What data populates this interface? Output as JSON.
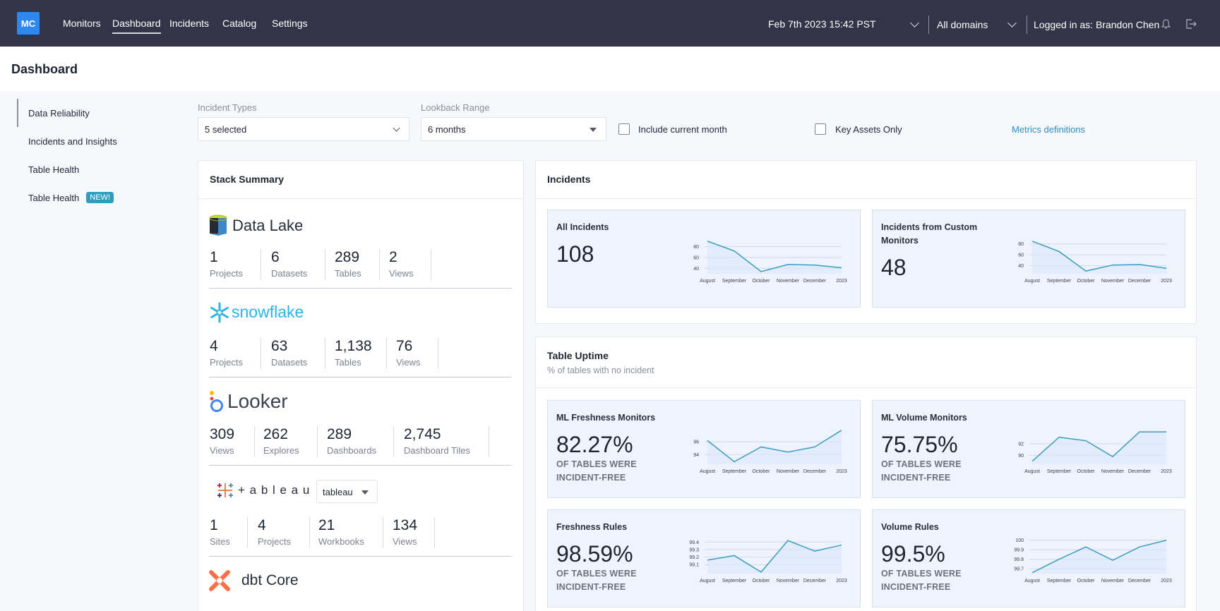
{
  "nav": {
    "logo": "MC",
    "items": [
      "Monitors",
      "Dashboard",
      "Incidents",
      "Catalog",
      "Settings"
    ],
    "active": "Dashboard",
    "date": "Feb 7th 2023 15:42 PST",
    "domains": "All domains",
    "user": "Logged in as: Brandon Chen"
  },
  "page": {
    "title": "Dashboard"
  },
  "sidebar": {
    "items": [
      {
        "label": "Data Reliability"
      },
      {
        "label": "Incidents and Insights"
      },
      {
        "label": "Table Health"
      },
      {
        "label": "Table Health",
        "badge": "NEW!"
      }
    ]
  },
  "filters": {
    "incident_types_label": "Incident Types",
    "incident_types_value": "5 selected",
    "lookback_label": "Lookback Range",
    "lookback_value": "6 months",
    "include_current_month": "Include current month",
    "key_assets_only": "Key Assets Only",
    "metrics_link": "Metrics definitions"
  },
  "stack": {
    "title": "Stack Summary",
    "data_lake": {
      "name": "Data Lake",
      "stats": [
        {
          "value": "1",
          "label": "Projects"
        },
        {
          "value": "6",
          "label": "Datasets"
        },
        {
          "value": "289",
          "label": "Tables"
        },
        {
          "value": "2",
          "label": "Views"
        }
      ]
    },
    "snowflake": {
      "name": "snowflake",
      "stats": [
        {
          "value": "4",
          "label": "Projects"
        },
        {
          "value": "63",
          "label": "Datasets"
        },
        {
          "value": "1,138",
          "label": "Tables"
        },
        {
          "value": "76",
          "label": "Views"
        }
      ]
    },
    "looker": {
      "name": "Looker",
      "stats": [
        {
          "value": "309",
          "label": "Views"
        },
        {
          "value": "262",
          "label": "Explores"
        },
        {
          "value": "289",
          "label": "Dashboards"
        },
        {
          "value": "2,745",
          "label": "Dashboard Tiles"
        }
      ]
    },
    "tableau": {
      "name": "+ a b l e a u",
      "dropdown": "tableau",
      "stats": [
        {
          "value": "1",
          "label": "Sites"
        },
        {
          "value": "4",
          "label": "Projects"
        },
        {
          "value": "21",
          "label": "Workbooks"
        },
        {
          "value": "134",
          "label": "Views"
        }
      ]
    },
    "dbt": {
      "name": "dbt Core"
    }
  },
  "incidents": {
    "title": "Incidents",
    "all": {
      "title": "All Incidents",
      "value": "108"
    },
    "custom": {
      "title_line1": "Incidents from Custom",
      "title_line2": "Monitors",
      "value": "48"
    }
  },
  "uptime": {
    "title": "Table Uptime",
    "subtitle": "% of tables with no incident",
    "note_line1": "OF TABLES WERE",
    "note_line2": "INCIDENT-FREE",
    "ml_freshness": {
      "title": "ML Freshness Monitors",
      "value": "82.27%"
    },
    "ml_volume": {
      "title": "ML Volume Monitors",
      "value": "75.75%"
    },
    "freshness_rules": {
      "title": "Freshness Rules",
      "value": "98.59%"
    },
    "volume_rules": {
      "title": "Volume Rules",
      "value": "99.5%"
    }
  },
  "colors": {
    "nav_bg": "#333448",
    "accent": "#2f88f0",
    "line": "#3a9cc4",
    "link": "#2c8fcb"
  },
  "chart_data": [
    {
      "type": "line",
      "name": "All Incidents",
      "categories": [
        "August",
        "September",
        "October",
        "November",
        "December",
        "2023"
      ],
      "values": [
        90,
        72,
        34,
        47,
        46,
        41
      ],
      "yticks": [
        "80",
        "60",
        "40"
      ],
      "ylim": [
        30,
        95
      ]
    },
    {
      "type": "line",
      "name": "Incidents from Custom Monitors",
      "categories": [
        "August",
        "September",
        "October",
        "November",
        "December",
        "2023"
      ],
      "values": [
        85,
        66,
        30,
        41,
        42,
        35
      ],
      "yticks": [
        "80",
        "60",
        "40"
      ],
      "ylim": [
        25,
        90
      ]
    },
    {
      "type": "line",
      "name": "ML Freshness Monitors",
      "categories": [
        "August",
        "September",
        "October",
        "November",
        "December",
        "2023"
      ],
      "values": [
        96.2,
        92.9,
        95.2,
        94.4,
        95.2,
        97.8
      ],
      "yticks": [
        "96",
        "94"
      ],
      "ylim": [
        92.5,
        98
      ]
    },
    {
      "type": "line",
      "name": "ML Volume Monitors",
      "categories": [
        "August",
        "September",
        "October",
        "November",
        "December",
        "2023"
      ],
      "values": [
        89,
        93.1,
        92.5,
        89.8,
        94.0,
        94.0
      ],
      "yticks": [
        "92",
        "90"
      ],
      "ylim": [
        88.5,
        94.5
      ]
    },
    {
      "type": "line",
      "name": "Freshness Rules",
      "categories": [
        "August",
        "September",
        "October",
        "November",
        "December",
        "2023"
      ],
      "values": [
        99.16,
        99.22,
        99.0,
        99.42,
        99.28,
        99.36
      ],
      "yticks": [
        "99.4",
        "99.3",
        "99.2",
        "99.1"
      ],
      "ylim": [
        98.98,
        99.45
      ]
    },
    {
      "type": "line",
      "name": "Volume Rules",
      "categories": [
        "August",
        "September",
        "October",
        "November",
        "December",
        "2023"
      ],
      "values": [
        99.66,
        99.8,
        99.93,
        99.79,
        99.93,
        100.0
      ],
      "yticks": [
        "100",
        "99.9",
        "99.8",
        "99.7"
      ],
      "ylim": [
        99.65,
        100.02
      ]
    }
  ]
}
